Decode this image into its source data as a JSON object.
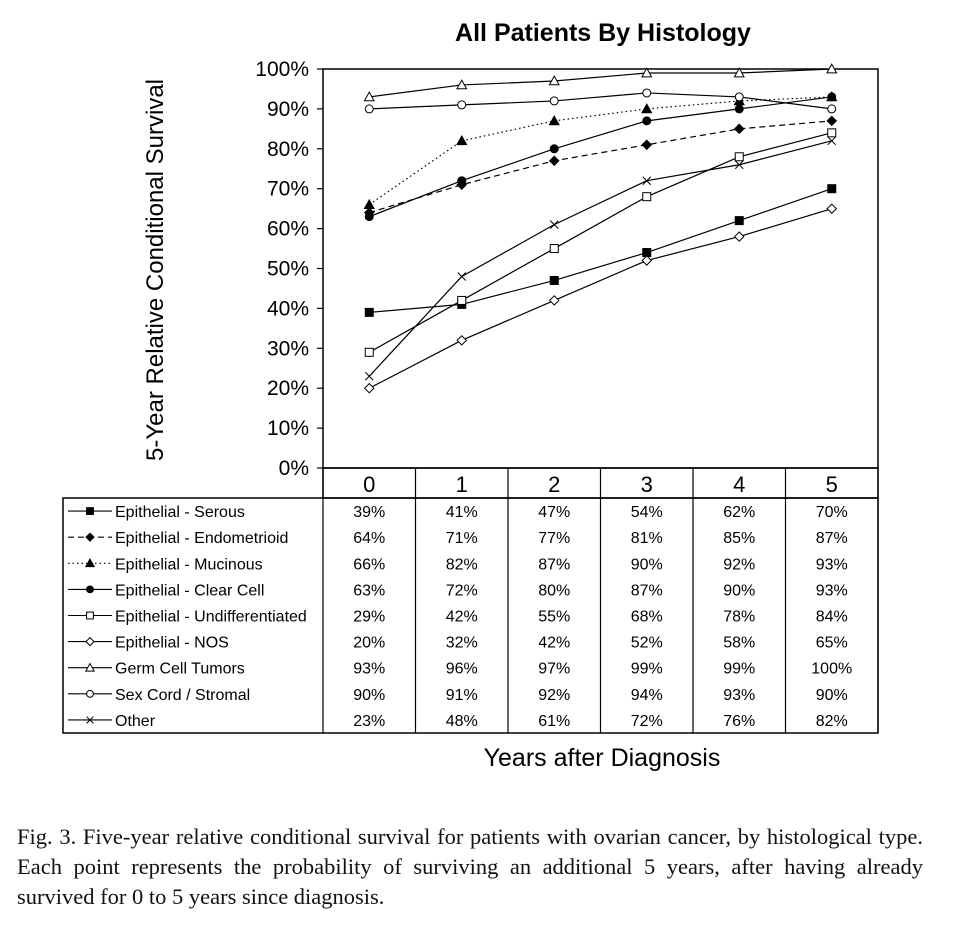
{
  "chart_data": {
    "type": "line",
    "title": "All Patients By Histology",
    "ylabel": "5-Year Relative Conditional Survival",
    "xlabel": "Years after Diagnosis",
    "ylim": [
      0,
      100
    ],
    "yticks": [
      "0%",
      "10%",
      "20%",
      "30%",
      "40%",
      "50%",
      "60%",
      "70%",
      "80%",
      "90%",
      "100%"
    ],
    "categories": [
      "0",
      "1",
      "2",
      "3",
      "4",
      "5"
    ],
    "grid": false,
    "legend": "table-below",
    "series": [
      {
        "name": "Epithelial - Serous",
        "values": [
          39,
          41,
          47,
          54,
          62,
          70
        ],
        "labels": [
          "39%",
          "41%",
          "47%",
          "54%",
          "62%",
          "70%"
        ],
        "marker": "square-filled",
        "dash": "solid"
      },
      {
        "name": "Epithelial - Endometrioid",
        "values": [
          64,
          71,
          77,
          81,
          85,
          87
        ],
        "labels": [
          "64%",
          "71%",
          "77%",
          "81%",
          "85%",
          "87%"
        ],
        "marker": "diamond-filled",
        "dash": "dashed"
      },
      {
        "name": "Epithelial - Mucinous",
        "values": [
          66,
          82,
          87,
          90,
          92,
          93
        ],
        "labels": [
          "66%",
          "82%",
          "87%",
          "90%",
          "92%",
          "93%"
        ],
        "marker": "triangle-filled",
        "dash": "dotted"
      },
      {
        "name": "Epithelial - Clear Cell",
        "values": [
          63,
          72,
          80,
          87,
          90,
          93
        ],
        "labels": [
          "63%",
          "72%",
          "80%",
          "87%",
          "90%",
          "93%"
        ],
        "marker": "circle-filled",
        "dash": "solid"
      },
      {
        "name": "Epithelial - Undifferentiated",
        "values": [
          29,
          42,
          55,
          68,
          78,
          84
        ],
        "labels": [
          "29%",
          "42%",
          "55%",
          "68%",
          "78%",
          "84%"
        ],
        "marker": "square-open",
        "dash": "solid"
      },
      {
        "name": "Epithelial - NOS",
        "values": [
          20,
          32,
          42,
          52,
          58,
          65
        ],
        "labels": [
          "20%",
          "32%",
          "42%",
          "52%",
          "58%",
          "65%"
        ],
        "marker": "diamond-open",
        "dash": "solid"
      },
      {
        "name": "Germ Cell Tumors",
        "values": [
          93,
          96,
          97,
          99,
          99,
          100
        ],
        "labels": [
          "93%",
          "96%",
          "97%",
          "99%",
          "99%",
          "100%"
        ],
        "marker": "triangle-open",
        "dash": "solid"
      },
      {
        "name": "Sex Cord / Stromal",
        "values": [
          90,
          91,
          92,
          94,
          93,
          90
        ],
        "labels": [
          "90%",
          "91%",
          "92%",
          "94%",
          "93%",
          "90%"
        ],
        "marker": "circle-open",
        "dash": "solid"
      },
      {
        "name": "Other",
        "values": [
          23,
          48,
          61,
          72,
          76,
          82
        ],
        "labels": [
          "23%",
          "48%",
          "61%",
          "72%",
          "76%",
          "82%"
        ],
        "marker": "x",
        "dash": "solid"
      }
    ]
  },
  "caption": "Fig. 3. Five-year relative conditional survival for patients with ovarian cancer, by histological type. Each point represents the probability of surviving an additional 5 years, after having already survived for 0 to 5 years since diagnosis."
}
